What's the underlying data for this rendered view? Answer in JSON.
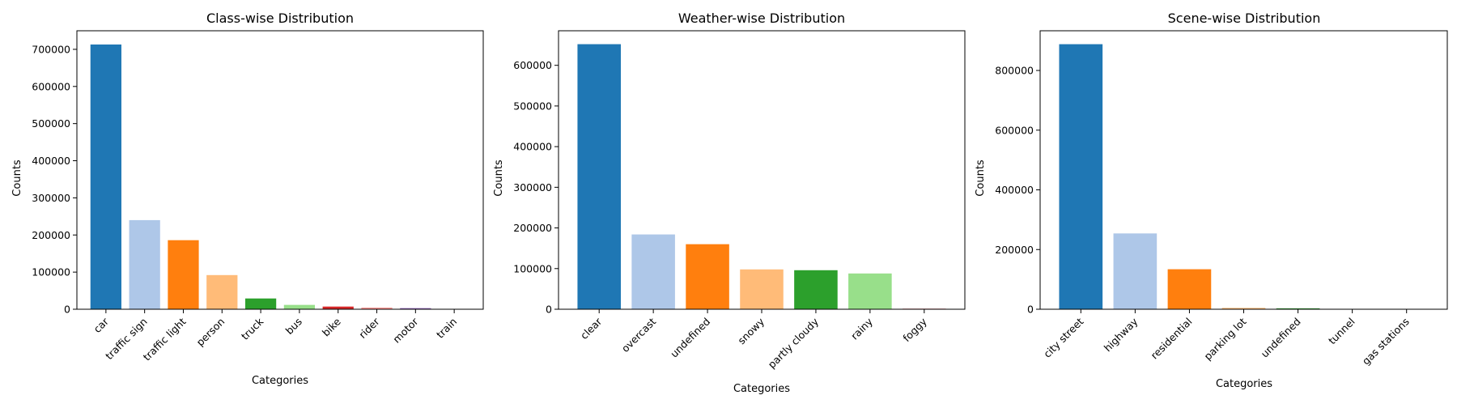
{
  "chart_data": [
    {
      "type": "bar",
      "title": "Class-wise Distribution",
      "xlabel": "Categories",
      "ylabel": "Counts",
      "categories": [
        "car",
        "traffic sign",
        "traffic light",
        "person",
        "truck",
        "bus",
        "bike",
        "rider",
        "motor",
        "train"
      ],
      "values": [
        713000,
        240000,
        186000,
        92000,
        29000,
        11700,
        7200,
        4500,
        3000,
        130
      ],
      "colors": [
        "#1f77b4",
        "#aec7e8",
        "#ff7f0e",
        "#ffbb78",
        "#2ca02c",
        "#98df8a",
        "#d62728",
        "#ff9896",
        "#9467bd",
        "#c5b0d5"
      ],
      "ylim": [
        0,
        750000
      ],
      "yticks": [
        0,
        100000,
        200000,
        300000,
        400000,
        500000,
        600000,
        700000
      ],
      "grid": false
    },
    {
      "type": "bar",
      "title": "Weather-wise Distribution",
      "xlabel": "Categories",
      "ylabel": "Counts",
      "categories": [
        "clear",
        "overcast",
        "undefined",
        "snowy",
        "partly cloudy",
        "rainy",
        "foggy"
      ],
      "values": [
        652000,
        184000,
        160000,
        98000,
        96000,
        88000,
        1300
      ],
      "colors": [
        "#1f77b4",
        "#aec7e8",
        "#ff7f0e",
        "#ffbb78",
        "#2ca02c",
        "#98df8a",
        "#d62728"
      ],
      "ylim": [
        0,
        685000
      ],
      "yticks": [
        0,
        100000,
        200000,
        300000,
        400000,
        500000,
        600000
      ],
      "grid": false
    },
    {
      "type": "bar",
      "title": "Scene-wise Distribution",
      "xlabel": "Categories",
      "ylabel": "Counts",
      "categories": [
        "city street",
        "highway",
        "residential",
        "parking lot",
        "undefined",
        "tunnel",
        "gas stations"
      ],
      "values": [
        888000,
        254000,
        134000,
        4500,
        3000,
        800,
        250
      ],
      "colors": [
        "#1f77b4",
        "#aec7e8",
        "#ff7f0e",
        "#ffbb78",
        "#2ca02c",
        "#98df8a",
        "#d62728"
      ],
      "ylim": [
        0,
        933000
      ],
      "yticks": [
        0,
        200000,
        400000,
        600000,
        800000
      ],
      "grid": false
    }
  ]
}
